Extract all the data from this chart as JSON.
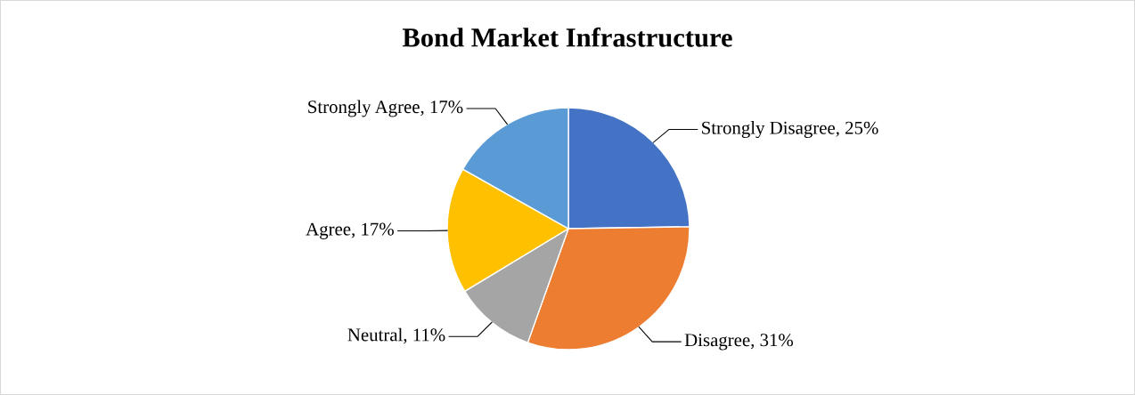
{
  "chart_data": {
    "type": "pie",
    "title": "Bond Market Infrastructure",
    "categories": [
      "Strongly Disagree",
      "Disagree",
      "Neutral",
      "Agree",
      "Strongly Agree"
    ],
    "values": [
      25,
      31,
      11,
      17,
      17
    ],
    "colors": [
      "#4472c4",
      "#ed7d31",
      "#a5a5a5",
      "#ffc000",
      "#5b9bd5"
    ],
    "value_labels": [
      "25%",
      "31%",
      "11%",
      "17%",
      "17%"
    ],
    "legend": false
  }
}
